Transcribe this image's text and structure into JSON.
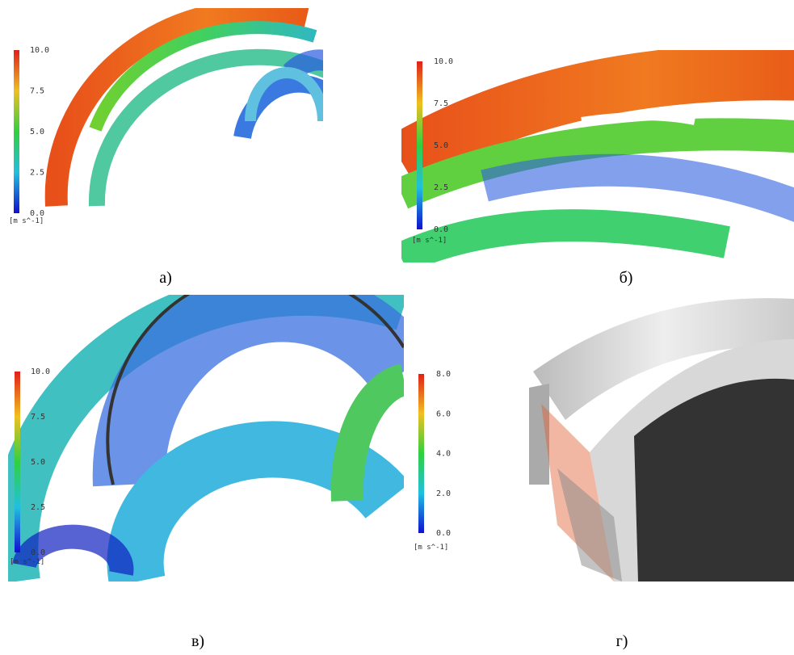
{
  "panels": [
    {
      "caption": "а)",
      "colorbar": {
        "ticks": [
          "10.0",
          "7.5",
          "5.0",
          "2.5",
          "0.0"
        ],
        "unit": "[m s^-1]"
      }
    },
    {
      "caption": "б)",
      "colorbar": {
        "ticks": [
          "10.0",
          "7.5",
          "5.0",
          "2.5",
          "0.0"
        ],
        "unit": "[m s^-1]"
      }
    },
    {
      "caption": "в)",
      "colorbar": {
        "ticks": [
          "10.0",
          "7.5",
          "5.0",
          "2.5",
          "0.0"
        ],
        "unit": "[m s^-1]"
      }
    },
    {
      "caption": "г)",
      "colorbar": {
        "ticks": [
          "8.0",
          "6.0",
          "4.0",
          "2.0",
          "0.0"
        ],
        "unit": "[m s^-1]"
      }
    }
  ]
}
